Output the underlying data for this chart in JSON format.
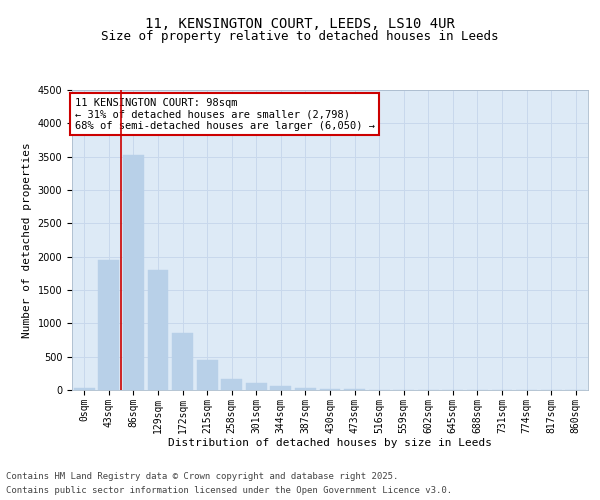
{
  "title_line1": "11, KENSINGTON COURT, LEEDS, LS10 4UR",
  "title_line2": "Size of property relative to detached houses in Leeds",
  "xlabel": "Distribution of detached houses by size in Leeds",
  "ylabel": "Number of detached properties",
  "bar_color": "#b8d0e8",
  "bar_edge_color": "#b8d0e8",
  "grid_color": "#c8d8ec",
  "background_color": "#ddeaf6",
  "categories": [
    "0sqm",
    "43sqm",
    "86sqm",
    "129sqm",
    "172sqm",
    "215sqm",
    "258sqm",
    "301sqm",
    "344sqm",
    "387sqm",
    "430sqm",
    "473sqm",
    "516sqm",
    "559sqm",
    "602sqm",
    "645sqm",
    "688sqm",
    "731sqm",
    "774sqm",
    "817sqm",
    "860sqm"
  ],
  "values": [
    25,
    1950,
    3530,
    1800,
    850,
    450,
    160,
    100,
    55,
    35,
    18,
    8,
    4,
    2,
    1,
    0,
    0,
    0,
    0,
    0,
    0
  ],
  "ylim": [
    0,
    4500
  ],
  "yticks": [
    0,
    500,
    1000,
    1500,
    2000,
    2500,
    3000,
    3500,
    4000,
    4500
  ],
  "vline_color": "#cc0000",
  "vline_position": 1.5,
  "annotation_text_line1": "11 KENSINGTON COURT: 98sqm",
  "annotation_text_line2": "← 31% of detached houses are smaller (2,798)",
  "annotation_text_line3": "68% of semi-detached houses are larger (6,050) →",
  "annotation_box_color": "#cc0000",
  "annotation_bg_color": "#ffffff",
  "footer_line1": "Contains HM Land Registry data © Crown copyright and database right 2025.",
  "footer_line2": "Contains public sector information licensed under the Open Government Licence v3.0.",
  "title_fontsize": 10,
  "subtitle_fontsize": 9,
  "axis_label_fontsize": 8,
  "tick_fontsize": 7,
  "annotation_fontsize": 7.5,
  "footer_fontsize": 6.5
}
